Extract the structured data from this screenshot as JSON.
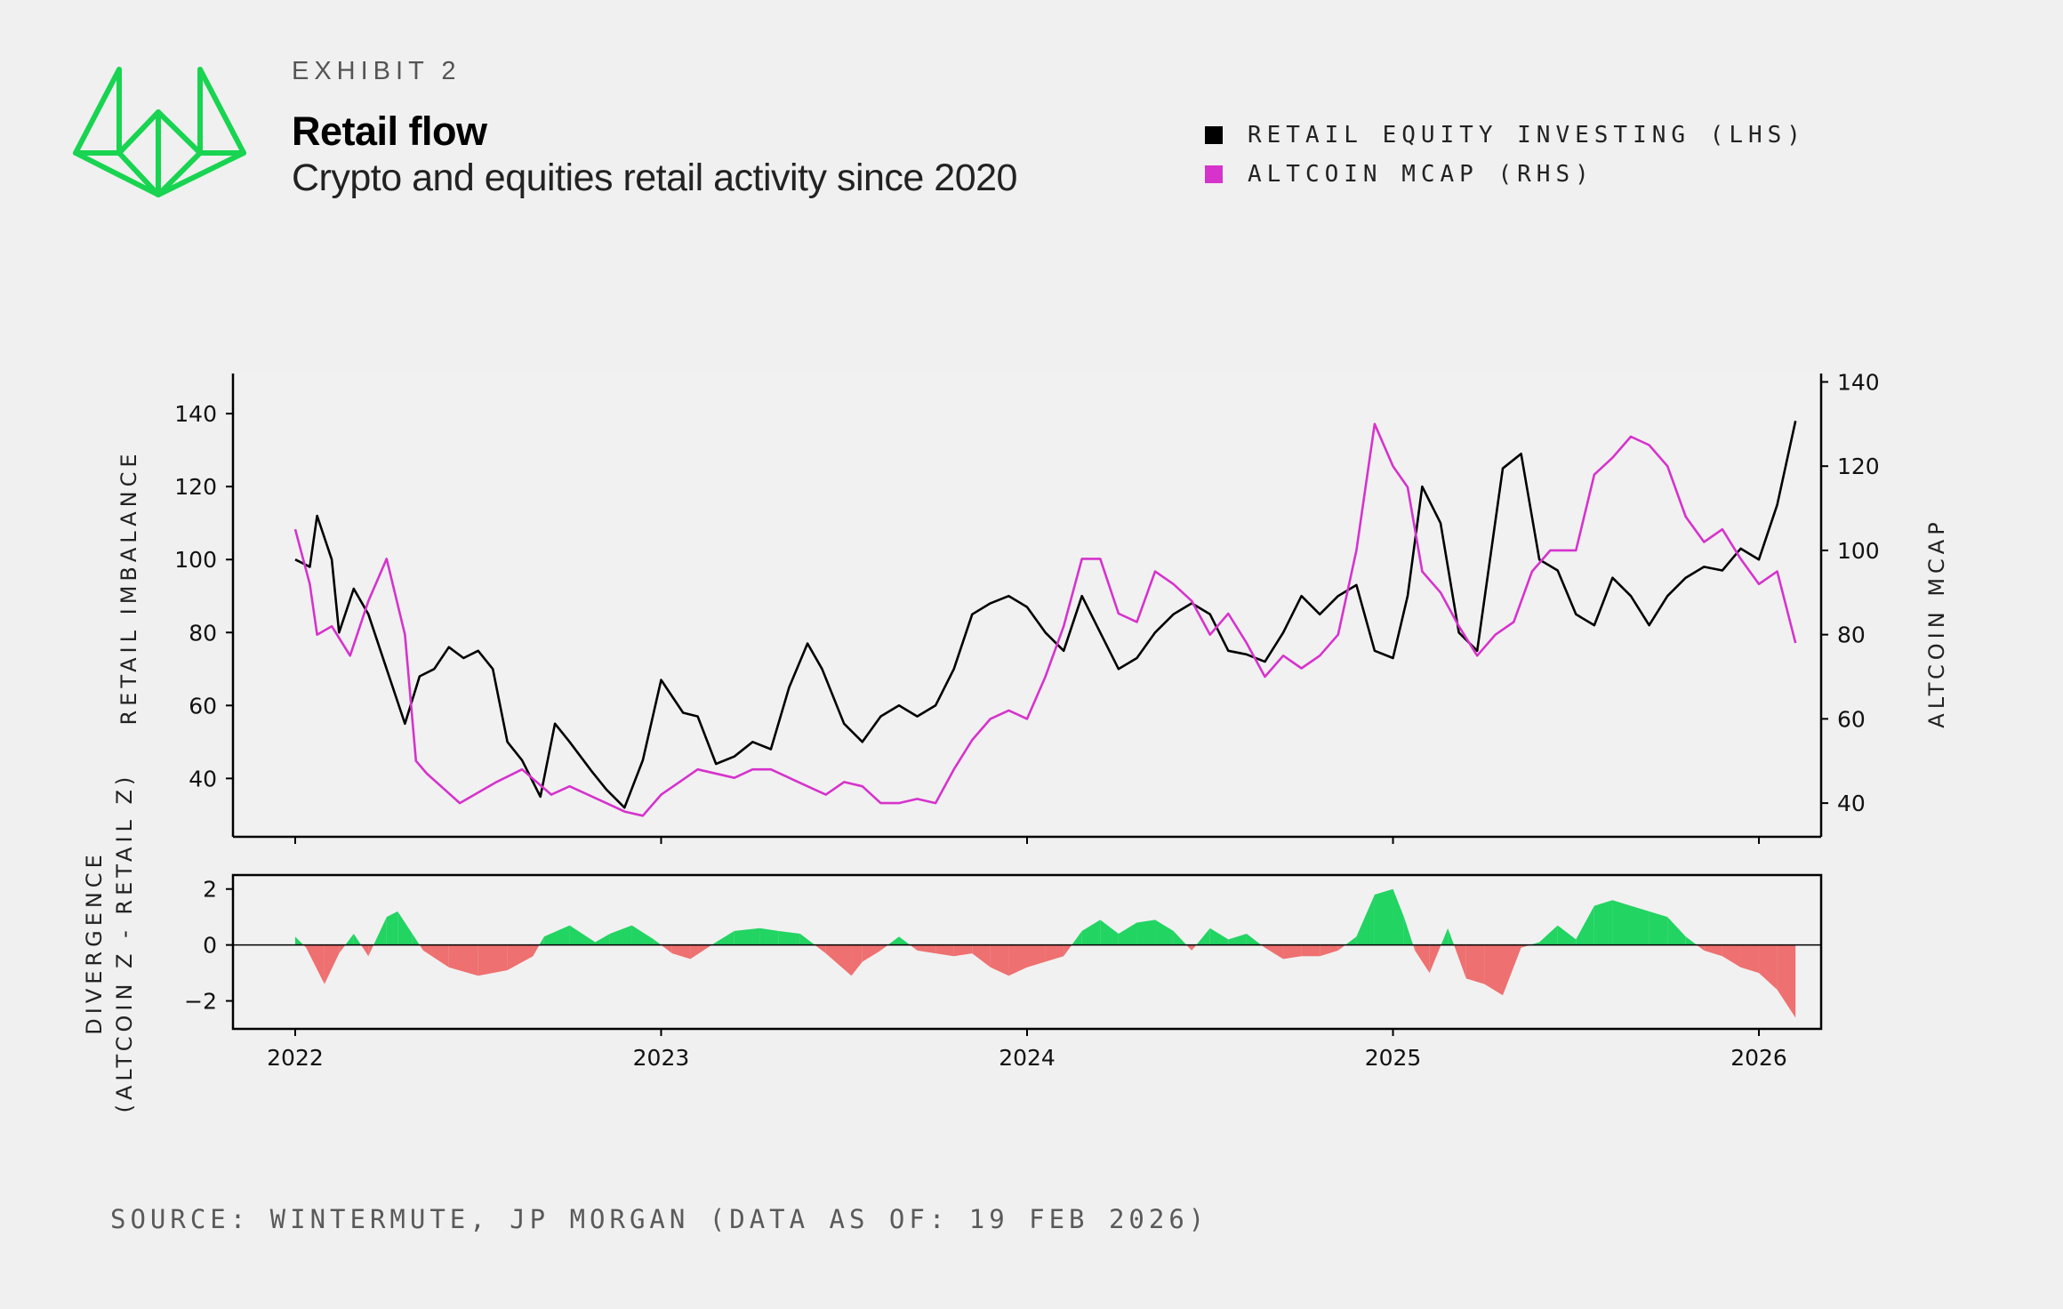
{
  "header": {
    "exhibit": "EXHIBIT 2",
    "title": "Retail flow",
    "subtitle": "Crypto and equities retail activity since 2020"
  },
  "legend": [
    {
      "label": "RETAIL EQUITY INVESTING (LHS)",
      "color": "#000000"
    },
    {
      "label": "ALTCOIN MCAP (RHS)",
      "color": "#d633cc"
    }
  ],
  "footer": {
    "source": "SOURCE: WINTERMUTE, JP MORGAN (DATA AS OF: 19 FEB 2026)"
  },
  "colors": {
    "logo": "#18d451",
    "positive": "#22d462",
    "negative": "#ee7070"
  },
  "chart_data": [
    {
      "type": "line",
      "ylabel": "RETAIL IMBALANCE",
      "y2label": "ALTCOIN MCAP",
      "ylim": [
        24,
        151
      ],
      "y2lim": [
        32,
        142
      ],
      "yticks": [
        40,
        60,
        80,
        100,
        120,
        140
      ],
      "y2ticks": [
        40,
        60,
        80,
        100,
        120,
        140
      ],
      "xlim": [
        2021.83,
        2026.17
      ],
      "xticks": [
        "2022",
        "2023",
        "2024",
        "2025",
        "2026"
      ],
      "series": [
        {
          "name": "RETAIL EQUITY INVESTING (LHS)",
          "axis": "left",
          "color": "#000000",
          "x": [
            2022.0,
            2022.04,
            2022.06,
            2022.1,
            2022.12,
            2022.16,
            2022.2,
            2022.25,
            2022.3,
            2022.34,
            2022.38,
            2022.42,
            2022.46,
            2022.5,
            2022.54,
            2022.58,
            2022.62,
            2022.67,
            2022.71,
            2022.75,
            2022.81,
            2022.85,
            2022.9,
            2022.95,
            2023.0,
            2023.06,
            2023.1,
            2023.15,
            2023.2,
            2023.25,
            2023.3,
            2023.35,
            2023.4,
            2023.44,
            2023.5,
            2023.55,
            2023.6,
            2023.65,
            2023.7,
            2023.75,
            2023.8,
            2023.85,
            2023.9,
            2023.95,
            2024.0,
            2024.05,
            2024.1,
            2024.15,
            2024.2,
            2024.25,
            2024.3,
            2024.35,
            2024.4,
            2024.45,
            2024.5,
            2024.55,
            2024.6,
            2024.65,
            2024.7,
            2024.75,
            2024.8,
            2024.85,
            2024.9,
            2024.95,
            2025.0,
            2025.04,
            2025.08,
            2025.13,
            2025.18,
            2025.23,
            2025.3,
            2025.35,
            2025.4,
            2025.45,
            2025.5,
            2025.55,
            2025.6,
            2025.65,
            2025.7,
            2025.75,
            2025.8,
            2025.85,
            2025.9,
            2025.95,
            2026.0,
            2026.05,
            2026.1
          ],
          "values": [
            100,
            98,
            112,
            100,
            80,
            92,
            85,
            70,
            55,
            68,
            70,
            76,
            73,
            75,
            70,
            50,
            45,
            35,
            55,
            50,
            42,
            37,
            32,
            45,
            67,
            58,
            57,
            44,
            46,
            50,
            48,
            65,
            77,
            70,
            55,
            50,
            57,
            60,
            57,
            60,
            70,
            85,
            88,
            90,
            87,
            80,
            75,
            90,
            80,
            70,
            73,
            80,
            85,
            88,
            85,
            75,
            74,
            72,
            80,
            90,
            85,
            90,
            93,
            75,
            73,
            90,
            120,
            110,
            80,
            75,
            125,
            129,
            100,
            97,
            85,
            82,
            95,
            90,
            82,
            90,
            95,
            98,
            97,
            103,
            100,
            115,
            138
          ]
        },
        {
          "name": "ALTCOIN MCAP (RHS)",
          "axis": "right",
          "color": "#d633cc",
          "x": [
            2022.0,
            2022.04,
            2022.06,
            2022.1,
            2022.15,
            2022.2,
            2022.25,
            2022.3,
            2022.33,
            2022.36,
            2022.45,
            2022.55,
            2022.62,
            2022.7,
            2022.75,
            2022.85,
            2022.9,
            2022.95,
            2023.0,
            2023.05,
            2023.1,
            2023.2,
            2023.25,
            2023.3,
            2023.4,
            2023.45,
            2023.5,
            2023.55,
            2023.6,
            2023.65,
            2023.7,
            2023.75,
            2023.8,
            2023.85,
            2023.9,
            2023.95,
            2024.0,
            2024.05,
            2024.1,
            2024.15,
            2024.2,
            2024.25,
            2024.3,
            2024.35,
            2024.4,
            2024.45,
            2024.5,
            2024.55,
            2024.6,
            2024.65,
            2024.7,
            2024.75,
            2024.8,
            2024.85,
            2024.9,
            2024.95,
            2025.0,
            2025.04,
            2025.08,
            2025.13,
            2025.18,
            2025.23,
            2025.28,
            2025.33,
            2025.38,
            2025.43,
            2025.5,
            2025.55,
            2025.6,
            2025.65,
            2025.7,
            2025.75,
            2025.8,
            2025.85,
            2025.9,
            2025.95,
            2026.0,
            2026.05,
            2026.1
          ],
          "values": [
            105,
            92,
            80,
            82,
            75,
            88,
            98,
            80,
            50,
            47,
            40,
            45,
            48,
            42,
            44,
            40,
            38,
            37,
            42,
            45,
            48,
            46,
            48,
            48,
            44,
            42,
            45,
            44,
            40,
            40,
            41,
            40,
            48,
            55,
            60,
            62,
            60,
            70,
            82,
            98,
            98,
            85,
            83,
            95,
            92,
            88,
            80,
            85,
            78,
            70,
            75,
            72,
            75,
            80,
            100,
            130,
            120,
            115,
            95,
            90,
            82,
            75,
            80,
            83,
            95,
            100,
            100,
            118,
            122,
            127,
            125,
            120,
            108,
            102,
            105,
            98,
            92,
            95,
            78
          ]
        }
      ]
    },
    {
      "type": "area",
      "ylabel": "DIVERGENCE\n(ALTCOIN Z - RETAIL Z)",
      "ylim": [
        -3,
        2.5
      ],
      "yticks": [
        2,
        0,
        -2
      ],
      "xlim": [
        2021.83,
        2026.17
      ],
      "xticks": [
        "2022",
        "2023",
        "2024",
        "2025",
        "2026"
      ],
      "series": [
        {
          "name": "Divergence",
          "x": [
            2022.0,
            2022.03,
            2022.08,
            2022.12,
            2022.16,
            2022.2,
            2022.25,
            2022.28,
            2022.32,
            2022.35,
            2022.42,
            2022.5,
            2022.58,
            2022.65,
            2022.68,
            2022.75,
            2022.82,
            2022.86,
            2022.92,
            2022.98,
            2023.03,
            2023.08,
            2023.15,
            2023.2,
            2023.27,
            2023.32,
            2023.38,
            2023.45,
            2023.52,
            2023.55,
            2023.6,
            2023.65,
            2023.7,
            2023.75,
            2023.8,
            2023.85,
            2023.9,
            2023.95,
            2024.0,
            2024.05,
            2024.1,
            2024.15,
            2024.2,
            2024.25,
            2024.3,
            2024.35,
            2024.4,
            2024.45,
            2024.5,
            2024.55,
            2024.6,
            2024.65,
            2024.7,
            2024.75,
            2024.8,
            2024.85,
            2024.9,
            2024.95,
            2025.0,
            2025.03,
            2025.06,
            2025.1,
            2025.15,
            2025.2,
            2025.25,
            2025.3,
            2025.35,
            2025.4,
            2025.45,
            2025.5,
            2025.55,
            2025.6,
            2025.65,
            2025.7,
            2025.75,
            2025.8,
            2025.85,
            2025.9,
            2025.95,
            2026.0,
            2026.05,
            2026.1
          ],
          "values": [
            0.3,
            -0.1,
            -1.4,
            -0.3,
            0.4,
            -0.4,
            1.0,
            1.2,
            0.4,
            -0.2,
            -0.8,
            -1.1,
            -0.9,
            -0.4,
            0.3,
            0.7,
            0.1,
            0.4,
            0.7,
            0.2,
            -0.3,
            -0.5,
            0.1,
            0.5,
            0.6,
            0.5,
            0.4,
            -0.3,
            -1.1,
            -0.6,
            -0.2,
            0.3,
            -0.2,
            -0.3,
            -0.4,
            -0.3,
            -0.8,
            -1.1,
            -0.8,
            -0.6,
            -0.4,
            0.5,
            0.9,
            0.4,
            0.8,
            0.9,
            0.5,
            -0.2,
            0.6,
            0.2,
            0.4,
            -0.1,
            -0.5,
            -0.4,
            -0.4,
            -0.2,
            0.3,
            1.8,
            2.0,
            1.0,
            -0.2,
            -1.0,
            0.6,
            -1.2,
            -1.4,
            -1.8,
            -0.1,
            0.1,
            0.7,
            0.2,
            1.4,
            1.6,
            1.4,
            1.2,
            1.0,
            0.3,
            -0.2,
            -0.4,
            -0.8,
            -1.0,
            -1.6,
            -2.6
          ]
        }
      ]
    }
  ]
}
